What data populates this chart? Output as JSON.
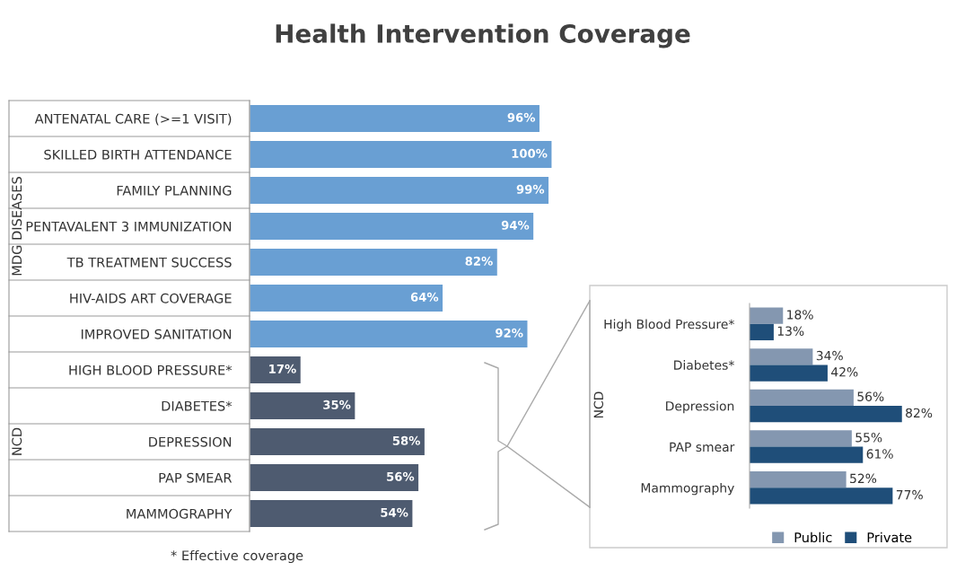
{
  "chart_data": [
    {
      "type": "bar",
      "orientation": "horizontal",
      "title": "Health Intervention Coverage",
      "categories": [
        "ANTENATAL CARE (>=1 VISIT)",
        "SKILLED BIRTH ATTENDANCE",
        "FAMILY PLANNING",
        "PENTAVALENT 3 IMMUNIZATION",
        "TB TREATMENT SUCCESS",
        "HIV-AIDS ART COVERAGE",
        "IMPROVED SANITATION",
        "HIGH BLOOD PRESSURE*",
        "DIABETES*",
        "DEPRESSION",
        "PAP SMEAR",
        "MAMMOGRAPHY"
      ],
      "values": [
        96,
        100,
        99,
        94,
        82,
        64,
        92,
        17,
        35,
        58,
        56,
        54
      ],
      "value_labels": [
        "96%",
        "100%",
        "99%",
        "94%",
        "82%",
        "64%",
        "92%",
        "17%",
        "35%",
        "58%",
        "56%",
        "54%"
      ],
      "colors": [
        "#699fd3",
        "#699fd3",
        "#699fd3",
        "#699fd3",
        "#699fd3",
        "#699fd3",
        "#699fd3",
        "#4e5b70",
        "#4e5b70",
        "#4e5b70",
        "#4e5b70",
        "#4e5b70"
      ],
      "annotations": [
        "MDG DISEASES",
        "NCD",
        "* Effective coverage"
      ],
      "grid": false,
      "legend": false
    },
    {
      "type": "bar",
      "orientation": "horizontal",
      "ylabel": "NCD",
      "categories": [
        "High Blood Pressure*",
        "Diabetes*",
        "Depression",
        "PAP smear",
        "Mammography"
      ],
      "series": [
        {
          "name": "Public",
          "color": "#8497b0",
          "values": [
            18,
            34,
            56,
            55,
            52
          ],
          "value_labels": [
            "18%",
            "34%",
            "56%",
            "55%",
            "52%"
          ]
        },
        {
          "name": "Private",
          "color": "#1f4e79",
          "values": [
            13,
            42,
            82,
            61,
            77
          ],
          "value_labels": [
            "13%",
            "42%",
            "82%",
            "61%",
            "77%"
          ]
        }
      ],
      "grid": false,
      "legend": "bottom"
    }
  ]
}
